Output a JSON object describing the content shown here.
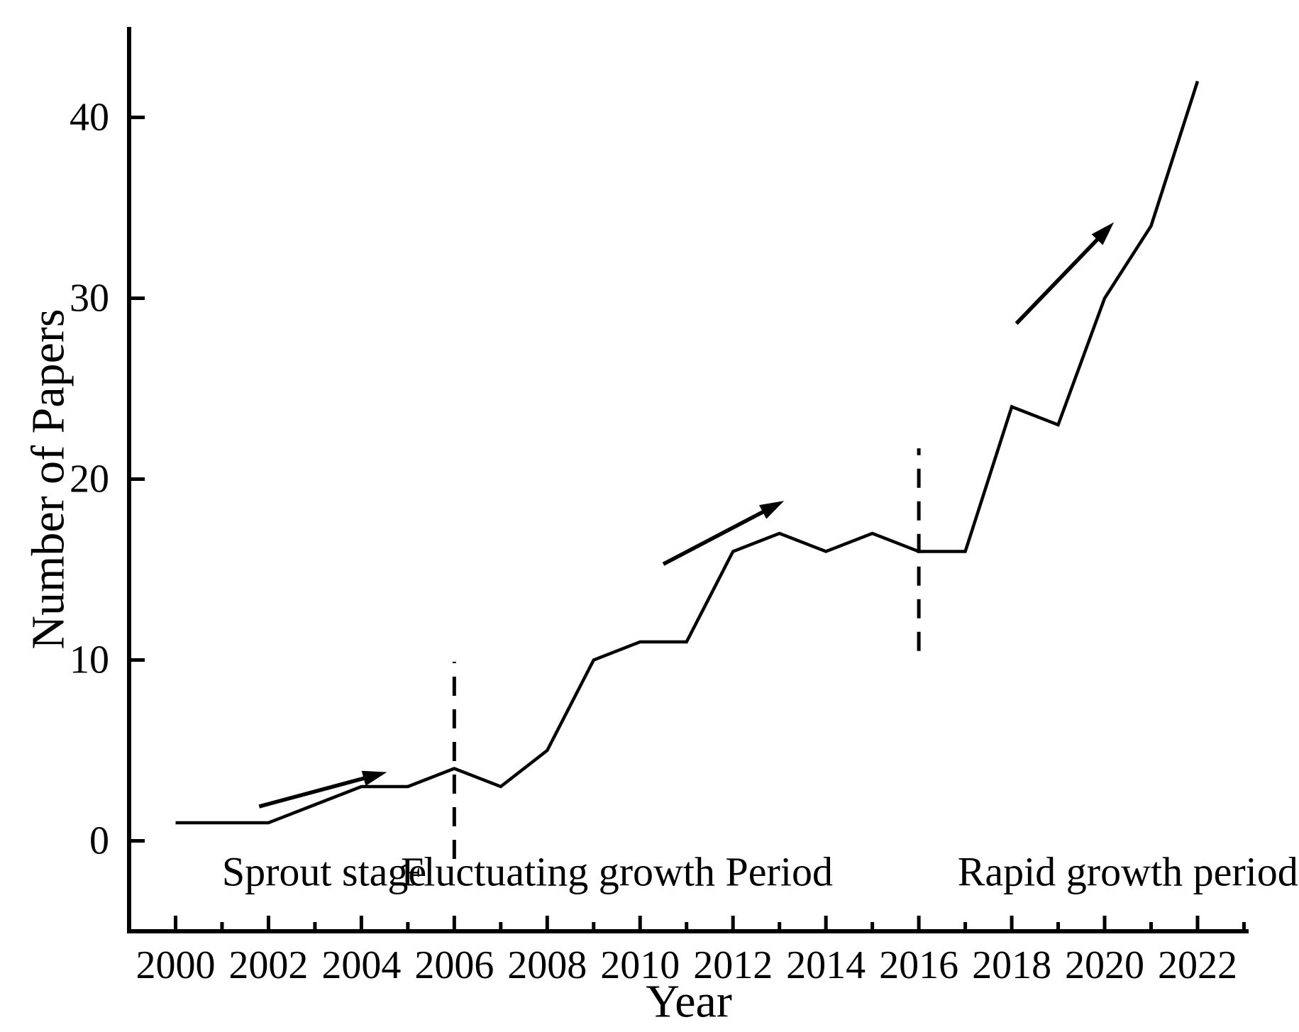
{
  "figure": {
    "background": "#ffffff",
    "ink_color": "#000000"
  },
  "chart_data": {
    "type": "line",
    "title": "",
    "xlabel": "Year",
    "ylabel": "Number of Papers",
    "x": [
      2000,
      2001,
      2002,
      2003,
      2004,
      2005,
      2006,
      2007,
      2008,
      2009,
      2010,
      2011,
      2012,
      2013,
      2014,
      2015,
      2016,
      2017,
      2018,
      2019,
      2020,
      2021,
      2022
    ],
    "values": [
      1,
      1,
      1,
      2,
      3,
      3,
      4,
      3,
      5,
      10,
      11,
      11,
      16,
      17,
      16,
      17,
      16,
      16,
      24,
      23,
      30,
      34,
      42
    ],
    "xlim": [
      1999.0,
      2023.1
    ],
    "ylim": [
      -5,
      45
    ],
    "yticks": [
      0,
      10,
      20,
      30,
      40
    ],
    "xticks_major": [
      2000,
      2002,
      2004,
      2006,
      2008,
      2010,
      2012,
      2014,
      2016,
      2018,
      2020,
      2022
    ],
    "xticks_minor": [
      2001,
      2003,
      2005,
      2007,
      2009,
      2011,
      2013,
      2015,
      2017,
      2019,
      2021,
      2023
    ],
    "grid": false,
    "legend": null,
    "line_color": "#000000",
    "annotations": {
      "stages": [
        {
          "label": "Sprout stage",
          "x": 2003.2,
          "y": -1.7
        },
        {
          "label": "Fluctuating growth Period",
          "x": 2009.5,
          "y": -1.7
        },
        {
          "label": "Rapid growth period",
          "x": 2020.5,
          "y": -1.7
        }
      ],
      "dividers": [
        {
          "x": 2006,
          "y1": -1.0,
          "y2": 9.9
        },
        {
          "x": 2016,
          "y1": 10.5,
          "y2": 21.7
        }
      ],
      "arrows": [
        {
          "x1": 2001.8,
          "y1": 1.9,
          "x2": 2004.55,
          "y2": 3.8
        },
        {
          "x1": 2010.5,
          "y1": 15.3,
          "x2": 2013.1,
          "y2": 18.8
        },
        {
          "x1": 2018.1,
          "y1": 28.6,
          "x2": 2020.2,
          "y2": 34.2
        }
      ]
    }
  }
}
